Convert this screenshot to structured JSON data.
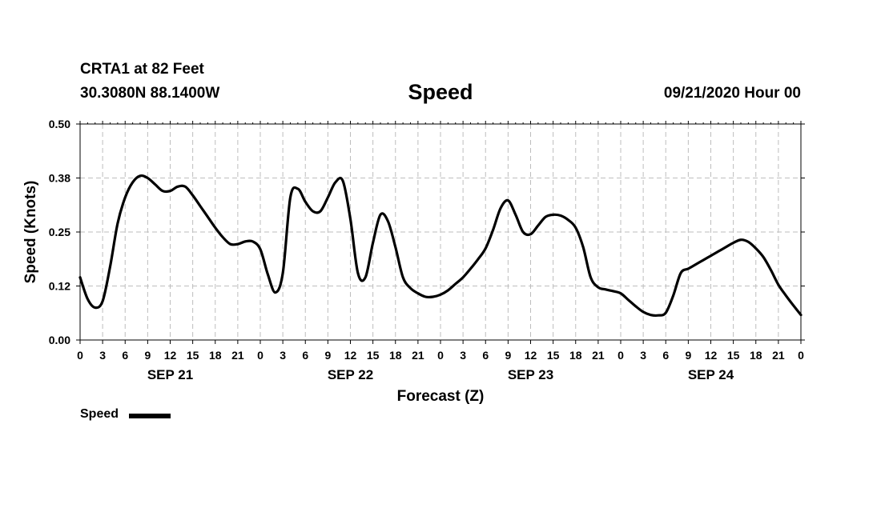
{
  "header": {
    "station": "CRTA1 at 82 Feet",
    "coords": "30.3080N 88.1400W",
    "title": "Speed",
    "datetime": "09/21/2020 Hour 00"
  },
  "legend": {
    "label": "Speed",
    "color": "#000000"
  },
  "chart_data": {
    "type": "line",
    "title": "Speed",
    "xlabel": "Forecast (Z)",
    "ylabel": "Speed (Knots)",
    "xlim": [
      0,
      96
    ],
    "ylim": [
      0,
      0.5
    ],
    "grid": true,
    "legend_position": "bottom-left",
    "y_ticks": [
      "0.00",
      "0.12",
      "0.25",
      "0.38",
      "0.50"
    ],
    "y_tick_values": [
      0,
      0.125,
      0.25,
      0.375,
      0.5
    ],
    "x_ticks": [
      "0",
      "3",
      "6",
      "9",
      "12",
      "15",
      "18",
      "21",
      "0",
      "3",
      "6",
      "9",
      "12",
      "15",
      "18",
      "21",
      "0",
      "3",
      "6",
      "9",
      "12",
      "15",
      "18",
      "21",
      "0",
      "3",
      "6",
      "9",
      "12",
      "15",
      "18",
      "21",
      "0"
    ],
    "days": [
      {
        "label": "SEP 21",
        "hour": 12
      },
      {
        "label": "SEP 22",
        "hour": 36
      },
      {
        "label": "SEP 23",
        "hour": 60
      },
      {
        "label": "SEP 24",
        "hour": 84
      }
    ],
    "series": [
      {
        "name": "Speed",
        "x": [
          0,
          1,
          2,
          3,
          4,
          5,
          6,
          7,
          8,
          9,
          10,
          11,
          12,
          13,
          14,
          15,
          16,
          17,
          18,
          19,
          20,
          21,
          22,
          23,
          24,
          25,
          26,
          27,
          28,
          29,
          30,
          31,
          32,
          33,
          34,
          35,
          36,
          37,
          38,
          39,
          40,
          41,
          42,
          43,
          44,
          45,
          46,
          47,
          48,
          49,
          50,
          51,
          52,
          53,
          54,
          55,
          56,
          57,
          58,
          59,
          60,
          61,
          62,
          63,
          64,
          65,
          66,
          67,
          68,
          69,
          70,
          71,
          72,
          73,
          74,
          75,
          76,
          77,
          78,
          79,
          80,
          81,
          82,
          83,
          84,
          85,
          86,
          87,
          88,
          89,
          90,
          91,
          92,
          93,
          94,
          95,
          96
        ],
        "y": [
          0.145,
          0.095,
          0.075,
          0.09,
          0.17,
          0.27,
          0.33,
          0.365,
          0.38,
          0.375,
          0.36,
          0.345,
          0.345,
          0.355,
          0.355,
          0.335,
          0.31,
          0.285,
          0.26,
          0.238,
          0.222,
          0.222,
          0.228,
          0.228,
          0.21,
          0.152,
          0.11,
          0.155,
          0.33,
          0.35,
          0.32,
          0.298,
          0.298,
          0.33,
          0.365,
          0.368,
          0.28,
          0.155,
          0.145,
          0.225,
          0.29,
          0.275,
          0.215,
          0.145,
          0.12,
          0.108,
          0.1,
          0.1,
          0.105,
          0.115,
          0.13,
          0.145,
          0.165,
          0.187,
          0.212,
          0.255,
          0.305,
          0.323,
          0.29,
          0.25,
          0.245,
          0.265,
          0.285,
          0.29,
          0.288,
          0.278,
          0.26,
          0.215,
          0.145,
          0.122,
          0.117,
          0.113,
          0.108,
          0.093,
          0.078,
          0.065,
          0.058,
          0.057,
          0.063,
          0.103,
          0.155,
          0.165,
          0.175,
          0.185,
          0.195,
          0.205,
          0.215,
          0.225,
          0.232,
          0.227,
          0.212,
          0.192,
          0.162,
          0.128,
          0.103,
          0.08,
          0.058
        ]
      }
    ]
  }
}
